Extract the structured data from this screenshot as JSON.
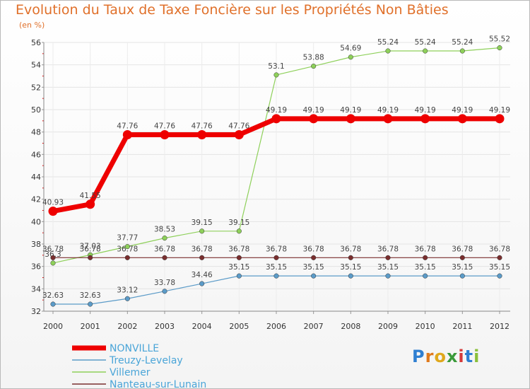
{
  "header": {
    "title": "Evolution du Taux de Taxe Foncière sur les Propriétés Non Bâties",
    "subtitle": "(en %)"
  },
  "brand": {
    "logo_text": "Proxiti",
    "logo_letters": [
      "P",
      "r",
      "o",
      "x",
      "i",
      "t",
      "i"
    ],
    "logo_colors": [
      "#2f7fd1",
      "#e07a1c",
      "#e0a81c",
      "#3a9a3a",
      "#d53a3a",
      "#2f7fd1",
      "#8ac03a"
    ]
  },
  "chart_data": {
    "type": "line",
    "title": "Evolution du Taux de Taxe Foncière sur les Propriétés Non Bâties",
    "ylabel": "(en %)",
    "xlabel": "",
    "ylim": [
      32,
      56
    ],
    "yticks": [
      32,
      34,
      36,
      38,
      40,
      42,
      44,
      46,
      48,
      50,
      52,
      54,
      56
    ],
    "categories": [
      "2000",
      "2001",
      "2002",
      "2003",
      "2004",
      "2005",
      "2006",
      "2007",
      "2008",
      "2009",
      "2010",
      "2011",
      "2012"
    ],
    "series": [
      {
        "name": "Treuzy-Levelay",
        "color": "#5b9bc8",
        "width": 1.2,
        "values": [
          32.63,
          32.63,
          33.12,
          33.78,
          34.46,
          35.15,
          35.15,
          35.15,
          35.15,
          35.15,
          35.15,
          35.15,
          35.15
        ],
        "labels": [
          "32.63",
          "32.63",
          "33.12",
          "33.78",
          "34.46",
          "35.15",
          "35.15",
          "35.15",
          "35.15",
          "35.15",
          "35.15",
          "35.15",
          "35.15"
        ]
      },
      {
        "name": "Villemer",
        "color": "#8ed05a",
        "width": 1.2,
        "values": [
          36.3,
          37.03,
          37.77,
          38.53,
          39.15,
          39.15,
          53.1,
          53.88,
          54.69,
          55.24,
          55.24,
          55.24,
          55.52
        ],
        "labels": [
          "36.3",
          "37.03",
          "37.77",
          "38.53",
          "39.15",
          "39.15",
          "53.1",
          "53.88",
          "54.69",
          "55.24",
          "55.24",
          "55.24",
          "55.52"
        ]
      },
      {
        "name": "Nanteau-sur-Lunain",
        "color": "#7a2e2e",
        "width": 1.2,
        "values": [
          36.78,
          36.78,
          36.78,
          36.78,
          36.78,
          36.78,
          36.78,
          36.78,
          36.78,
          36.78,
          36.78,
          36.78,
          36.78
        ],
        "labels": [
          "36.78",
          "36.78",
          "36.78",
          "36.78",
          "36.78",
          "36.78",
          "36.78",
          "36.78",
          "36.78",
          "36.78",
          "36.78",
          "36.78",
          "36.78"
        ]
      },
      {
        "name": "NONVILLE",
        "color": "#ee0000",
        "width": 7,
        "values": [
          40.93,
          41.55,
          47.76,
          47.76,
          47.76,
          47.76,
          49.19,
          49.19,
          49.19,
          49.19,
          49.19,
          49.19,
          49.19
        ],
        "labels": [
          "40.93",
          "41.55",
          "47.76",
          "47.76",
          "47.76",
          "47.76",
          "49.19",
          "49.19",
          "49.19",
          "49.19",
          "49.19",
          "49.19",
          "49.19"
        ]
      }
    ],
    "legend": {
      "placement": "bottom-left",
      "entries": [
        {
          "name": "NONVILLE",
          "color": "#ee0000",
          "width": 7
        },
        {
          "name": "Treuzy-Levelay",
          "color": "#5b9bc8",
          "width": 1.5
        },
        {
          "name": "Villemer",
          "color": "#8ed05a",
          "width": 1.5
        },
        {
          "name": "Nanteau-sur-Lunain",
          "color": "#7a2e2e",
          "width": 1.5
        }
      ]
    }
  }
}
